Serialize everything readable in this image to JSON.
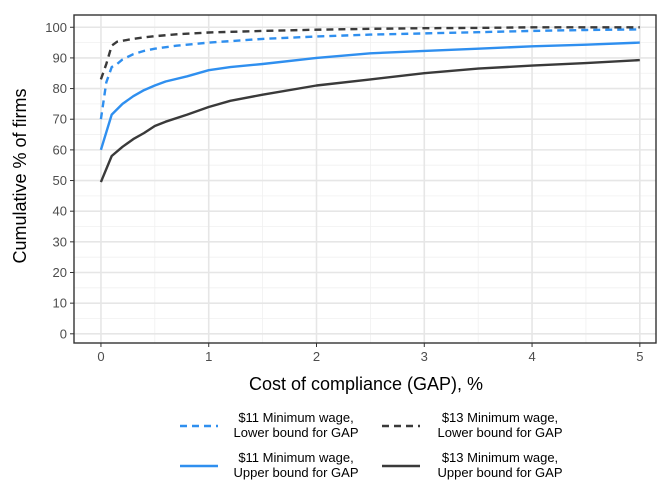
{
  "chart_data": {
    "type": "line",
    "title": "",
    "xlabel": "Cost of compliance (GAP), %",
    "ylabel": "Cumulative % of firms",
    "xlim": [
      -0.25,
      5.15
    ],
    "ylim": [
      -3,
      104
    ],
    "x_ticks": [
      0,
      1,
      2,
      3,
      4,
      5
    ],
    "y_ticks": [
      0,
      10,
      20,
      30,
      40,
      50,
      60,
      70,
      80,
      90,
      100
    ],
    "x_tick_labels": [
      "0",
      "1",
      "2",
      "3",
      "4",
      "5"
    ],
    "y_tick_labels": [
      "0",
      "10",
      "20",
      "30",
      "40",
      "50",
      "60",
      "70",
      "80",
      "90",
      "100"
    ],
    "grid": true,
    "legend_position": "bottom",
    "series": [
      {
        "name_lines": [
          "$11 Minimum wage,",
          "Lower bound for GAP"
        ],
        "color": "#2f8fef",
        "dash": true,
        "x": [
          0,
          0.05,
          0.1,
          0.15,
          0.2,
          0.3,
          0.4,
          0.5,
          0.7,
          1,
          1.5,
          2,
          2.5,
          3,
          3.5,
          4,
          4.5,
          5
        ],
        "y": [
          70,
          82,
          87,
          88,
          89.5,
          91.2,
          92.3,
          93,
          94,
          95,
          96.2,
          97,
          97.6,
          98,
          98.4,
          98.8,
          99.1,
          99.3
        ]
      },
      {
        "name_lines": [
          "$13 Minimum wage,",
          "Lower bound for GAP"
        ],
        "color": "#3a3a3a",
        "dash": true,
        "x": [
          0,
          0.05,
          0.1,
          0.15,
          0.2,
          0.3,
          0.4,
          0.5,
          0.7,
          1,
          1.5,
          2,
          2.5,
          3,
          3.5,
          4,
          4.5,
          5
        ],
        "y": [
          83,
          88,
          94,
          95.3,
          95.6,
          96.2,
          96.7,
          97.1,
          97.7,
          98.3,
          98.8,
          99.2,
          99.5,
          99.7,
          99.8,
          100,
          100,
          100
        ]
      },
      {
        "name_lines": [
          "$11 Minimum wage,",
          "Upper bound for GAP"
        ],
        "color": "#2f8fef",
        "dash": false,
        "x": [
          0,
          0.1,
          0.2,
          0.3,
          0.4,
          0.5,
          0.6,
          0.8,
          1,
          1.2,
          1.5,
          2,
          2.5,
          3,
          3.5,
          4,
          4.5,
          5
        ],
        "y": [
          60,
          71.5,
          75,
          77.5,
          79.5,
          81,
          82.3,
          84,
          86,
          87,
          88,
          90,
          91.5,
          92.3,
          93,
          93.8,
          94.3,
          95
        ]
      },
      {
        "name_lines": [
          "$13 Minimum wage,",
          "Upper bound for GAP"
        ],
        "color": "#3a3a3a",
        "dash": false,
        "x": [
          0,
          0.1,
          0.2,
          0.3,
          0.4,
          0.5,
          0.6,
          0.8,
          1,
          1.2,
          1.5,
          2,
          2.5,
          3,
          3.5,
          4,
          4.5,
          5
        ],
        "y": [
          49.5,
          58,
          61,
          63.5,
          65.5,
          67.8,
          69.2,
          71.5,
          74,
          76,
          78,
          81,
          83,
          85,
          86.5,
          87.5,
          88.3,
          89.3
        ]
      }
    ]
  }
}
